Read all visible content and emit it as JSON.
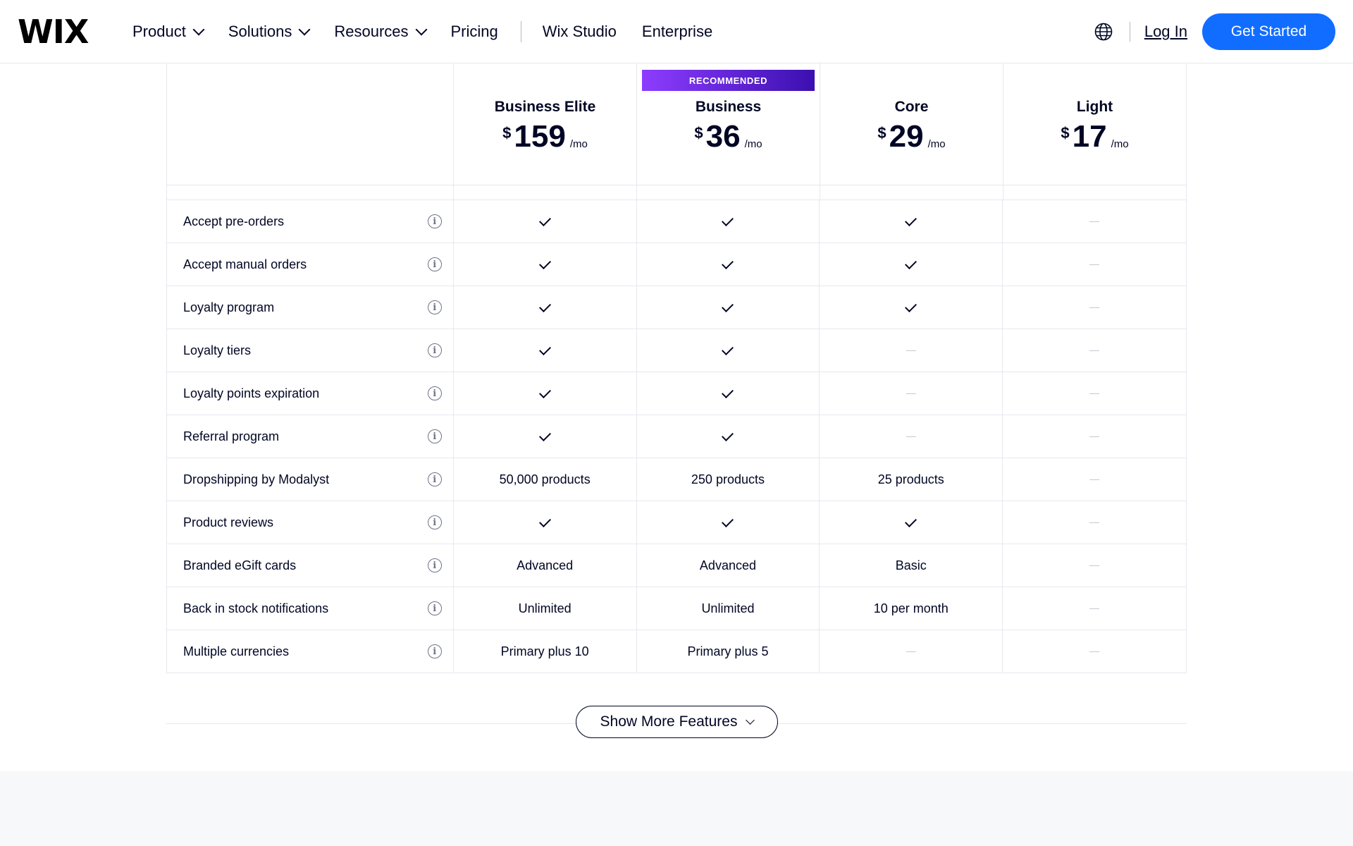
{
  "header": {
    "logo": "WIX",
    "nav": [
      {
        "label": "Product",
        "has_dropdown": true
      },
      {
        "label": "Solutions",
        "has_dropdown": true
      },
      {
        "label": "Resources",
        "has_dropdown": true
      },
      {
        "label": "Pricing",
        "has_dropdown": false
      }
    ],
    "nav_secondary": [
      "Wix Studio",
      "Enterprise"
    ],
    "login": "Log In",
    "cta": "Get Started"
  },
  "plans": [
    {
      "name": "Business Elite",
      "currency": "$",
      "price": "159",
      "period": "/mo",
      "badge": ""
    },
    {
      "name": "Business",
      "currency": "$",
      "price": "36",
      "period": "/mo",
      "badge": "RECOMMENDED"
    },
    {
      "name": "Core",
      "currency": "$",
      "price": "29",
      "period": "/mo",
      "badge": ""
    },
    {
      "name": "Light",
      "currency": "$",
      "price": "17",
      "period": "/mo",
      "badge": ""
    }
  ],
  "features": [
    {
      "name": "Accept pre-orders",
      "values": [
        "check",
        "check",
        "check",
        "dash"
      ]
    },
    {
      "name": "Accept manual orders",
      "values": [
        "check",
        "check",
        "check",
        "dash"
      ]
    },
    {
      "name": "Loyalty program",
      "values": [
        "check",
        "check",
        "check",
        "dash"
      ]
    },
    {
      "name": "Loyalty tiers",
      "values": [
        "check",
        "check",
        "dash",
        "dash"
      ]
    },
    {
      "name": "Loyalty points expiration",
      "values": [
        "check",
        "check",
        "dash",
        "dash"
      ]
    },
    {
      "name": "Referral program",
      "values": [
        "check",
        "check",
        "dash",
        "dash"
      ]
    },
    {
      "name": "Dropshipping by Modalyst",
      "values": [
        "50,000 products",
        "250 products",
        "25 products",
        "dash"
      ]
    },
    {
      "name": "Product reviews",
      "values": [
        "check",
        "check",
        "check",
        "dash"
      ]
    },
    {
      "name": "Branded eGift cards",
      "values": [
        "Advanced",
        "Advanced",
        "Basic",
        "dash"
      ]
    },
    {
      "name": "Back in stock notifications",
      "values": [
        "Unlimited",
        "Unlimited",
        "10 per month",
        "dash"
      ]
    },
    {
      "name": "Multiple currencies",
      "values": [
        "Primary plus 10",
        "Primary plus 5",
        "dash",
        "dash"
      ]
    }
  ],
  "show_more": "Show More Features",
  "colors": {
    "accent": "#116dff",
    "badge_start": "#8d3dff",
    "badge_end": "#3b0fb0",
    "text": "#000624",
    "border": "#e6e8ee"
  },
  "icons": {
    "globe": "globe-icon",
    "info": "info-icon",
    "check": "check-icon",
    "dash": "dash-icon",
    "chevron": "chevron-down-icon"
  }
}
